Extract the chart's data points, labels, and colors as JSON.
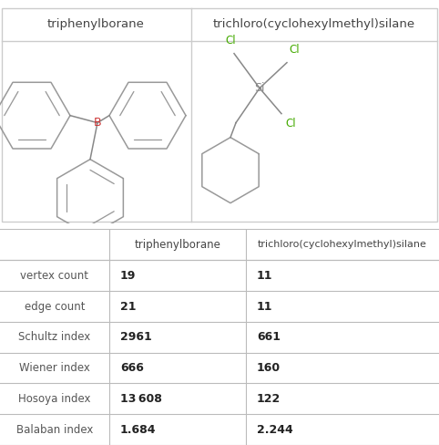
{
  "col_headers": [
    "",
    "triphenylborane",
    "trichloro(cyclohexylmethyl)silane"
  ],
  "row_labels": [
    "vertex count",
    "edge count",
    "Schultz index",
    "Wiener index",
    "Hosoya index",
    "Balaban index"
  ],
  "values": [
    [
      "19",
      "11"
    ],
    [
      "21",
      "11"
    ],
    [
      "2961",
      "661"
    ],
    [
      "666",
      "160"
    ],
    [
      "13 608",
      "122"
    ],
    [
      "1.684",
      "2.244"
    ]
  ],
  "title1": "triphenylborane",
  "title2": "trichloro(cyclohexylmethyl)silane",
  "bg_color": "#ffffff",
  "table_line_color": "#bbbbbb",
  "header_text_color": "#444444",
  "value_text_color": "#222222",
  "row_label_color": "#555555",
  "boron_color": "#cc3333",
  "cl_color": "#44aa00",
  "si_color": "#888888",
  "bond_color": "#888888",
  "ring_color": "#999999",
  "mol_panel_border": "#cccccc"
}
